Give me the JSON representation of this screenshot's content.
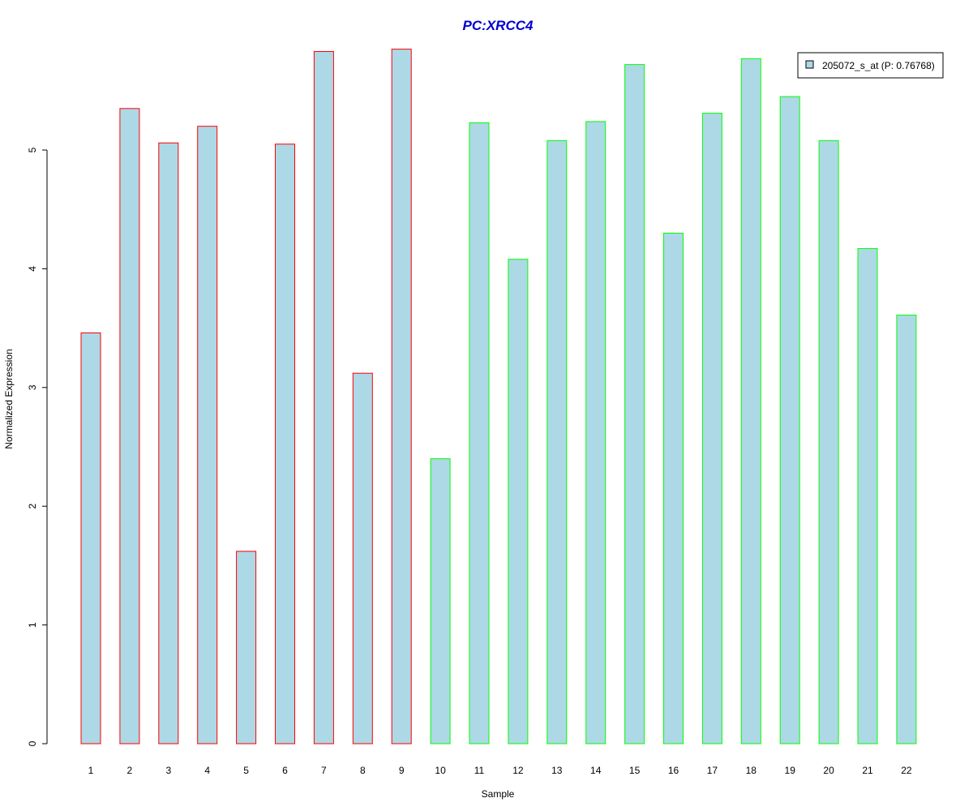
{
  "chart_data": {
    "type": "bar",
    "title": "PC:XRCC4",
    "xlabel": "Sample",
    "ylabel": "Normalized Expression",
    "categories": [
      "1",
      "2",
      "3",
      "4",
      "5",
      "6",
      "7",
      "8",
      "9",
      "10",
      "11",
      "12",
      "13",
      "14",
      "15",
      "16",
      "17",
      "18",
      "19",
      "20",
      "21",
      "22"
    ],
    "series": [
      {
        "name": "205072_s_at (P: 0.76768)",
        "values": [
          3.46,
          5.35,
          5.06,
          5.2,
          1.62,
          5.05,
          5.83,
          3.12,
          5.85,
          2.4,
          5.23,
          4.08,
          5.08,
          5.24,
          5.72,
          4.3,
          5.31,
          5.77,
          5.45,
          5.08,
          4.17,
          3.61
        ]
      }
    ],
    "group_of_bar": [
      "red",
      "red",
      "red",
      "red",
      "red",
      "red",
      "red",
      "red",
      "red",
      "green",
      "green",
      "green",
      "green",
      "green",
      "green",
      "green",
      "green",
      "green",
      "green",
      "green",
      "green",
      "green"
    ],
    "ylim": [
      0,
      5.85
    ],
    "yticks": [
      0,
      1,
      2,
      3,
      4,
      5
    ],
    "grid": false,
    "legend_position": "top-right",
    "colors": {
      "bar_fill": "#add8e6",
      "red": "#ff0000",
      "green": "#00ff00",
      "title": "#0000cd",
      "axis": "#000000"
    }
  }
}
